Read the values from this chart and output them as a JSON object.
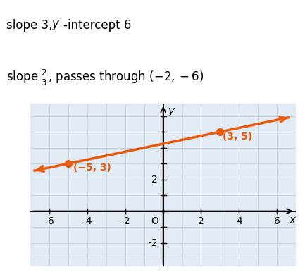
{
  "xlim": [
    -7,
    7
  ],
  "ylim": [
    -3.5,
    6.8
  ],
  "xticks": [
    -6,
    -4,
    -2,
    0,
    2,
    4,
    6
  ],
  "ytick_labeled": [
    2,
    -2
  ],
  "point1": [
    -5,
    3
  ],
  "point2": [
    3,
    5
  ],
  "label1": "(−5, 3)",
  "label2": "(3, 5)",
  "line_color": "#E85A0A",
  "point_color": "#E85A0A",
  "grid_color": "#C5D5E5",
  "bg_color": "#E2EBF3",
  "line_x_start": -6.85,
  "line_x_end": 6.7,
  "text_color": "#E85A0A",
  "text_line1_part1": "slope 3, ",
  "text_line1_italic": "y",
  "text_line1_part2": "-intercept 6",
  "text_line2": "slope $\\frac{2}{3}$, passes through $(-2, -6)$"
}
